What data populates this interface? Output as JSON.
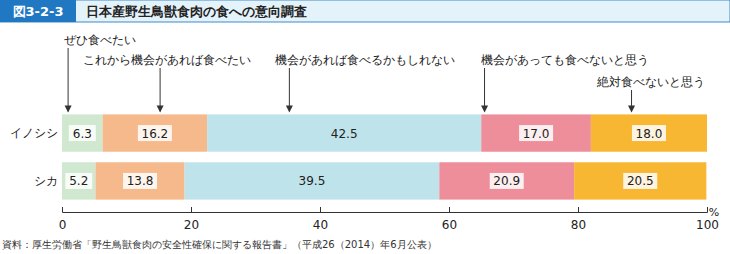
{
  "chart_data": {
    "type": "bar",
    "orientation": "horizontal",
    "stacked": true,
    "data_labels": true,
    "figure_label": "図3-2-3",
    "title": "日本産野生鳥獣食肉の食への意向調査",
    "source": "資料：厚生労働省「野生鳥獣食肉の安全性確保に関する報告書」（平成26（2014）年6月公表）",
    "x_label": "%",
    "categories": [
      "イノシシ",
      "シカ"
    ],
    "xlim": [
      0,
      100
    ],
    "xticks": [
      0,
      20,
      40,
      60,
      80,
      100
    ],
    "series": [
      {
        "name": "ぜひ食べたい",
        "color": "#cfe8cf",
        "values": [
          6.3,
          5.2
        ],
        "value_labels": [
          "6.3",
          "5.2"
        ]
      },
      {
        "name": "これから機会があれば食べたい",
        "color": "#f6b98c",
        "values": [
          16.2,
          13.8
        ],
        "value_labels": [
          "16.2",
          "13.8"
        ]
      },
      {
        "name": "機会があれば食べるかもしれない",
        "color": "#bfe3ea",
        "values": [
          42.5,
          39.5
        ],
        "value_labels": [
          "42.5",
          "39.5"
        ]
      },
      {
        "name": "機会があっても食べないと思う",
        "color": "#ee8e9b",
        "values": [
          17.0,
          20.9
        ],
        "value_labels": [
          "17.0",
          "20.9"
        ]
      },
      {
        "name": "絶対食べないと思う",
        "color": "#f7b733",
        "values": [
          18.0,
          20.5
        ],
        "value_labels": [
          "18.0",
          "20.5"
        ]
      }
    ]
  }
}
